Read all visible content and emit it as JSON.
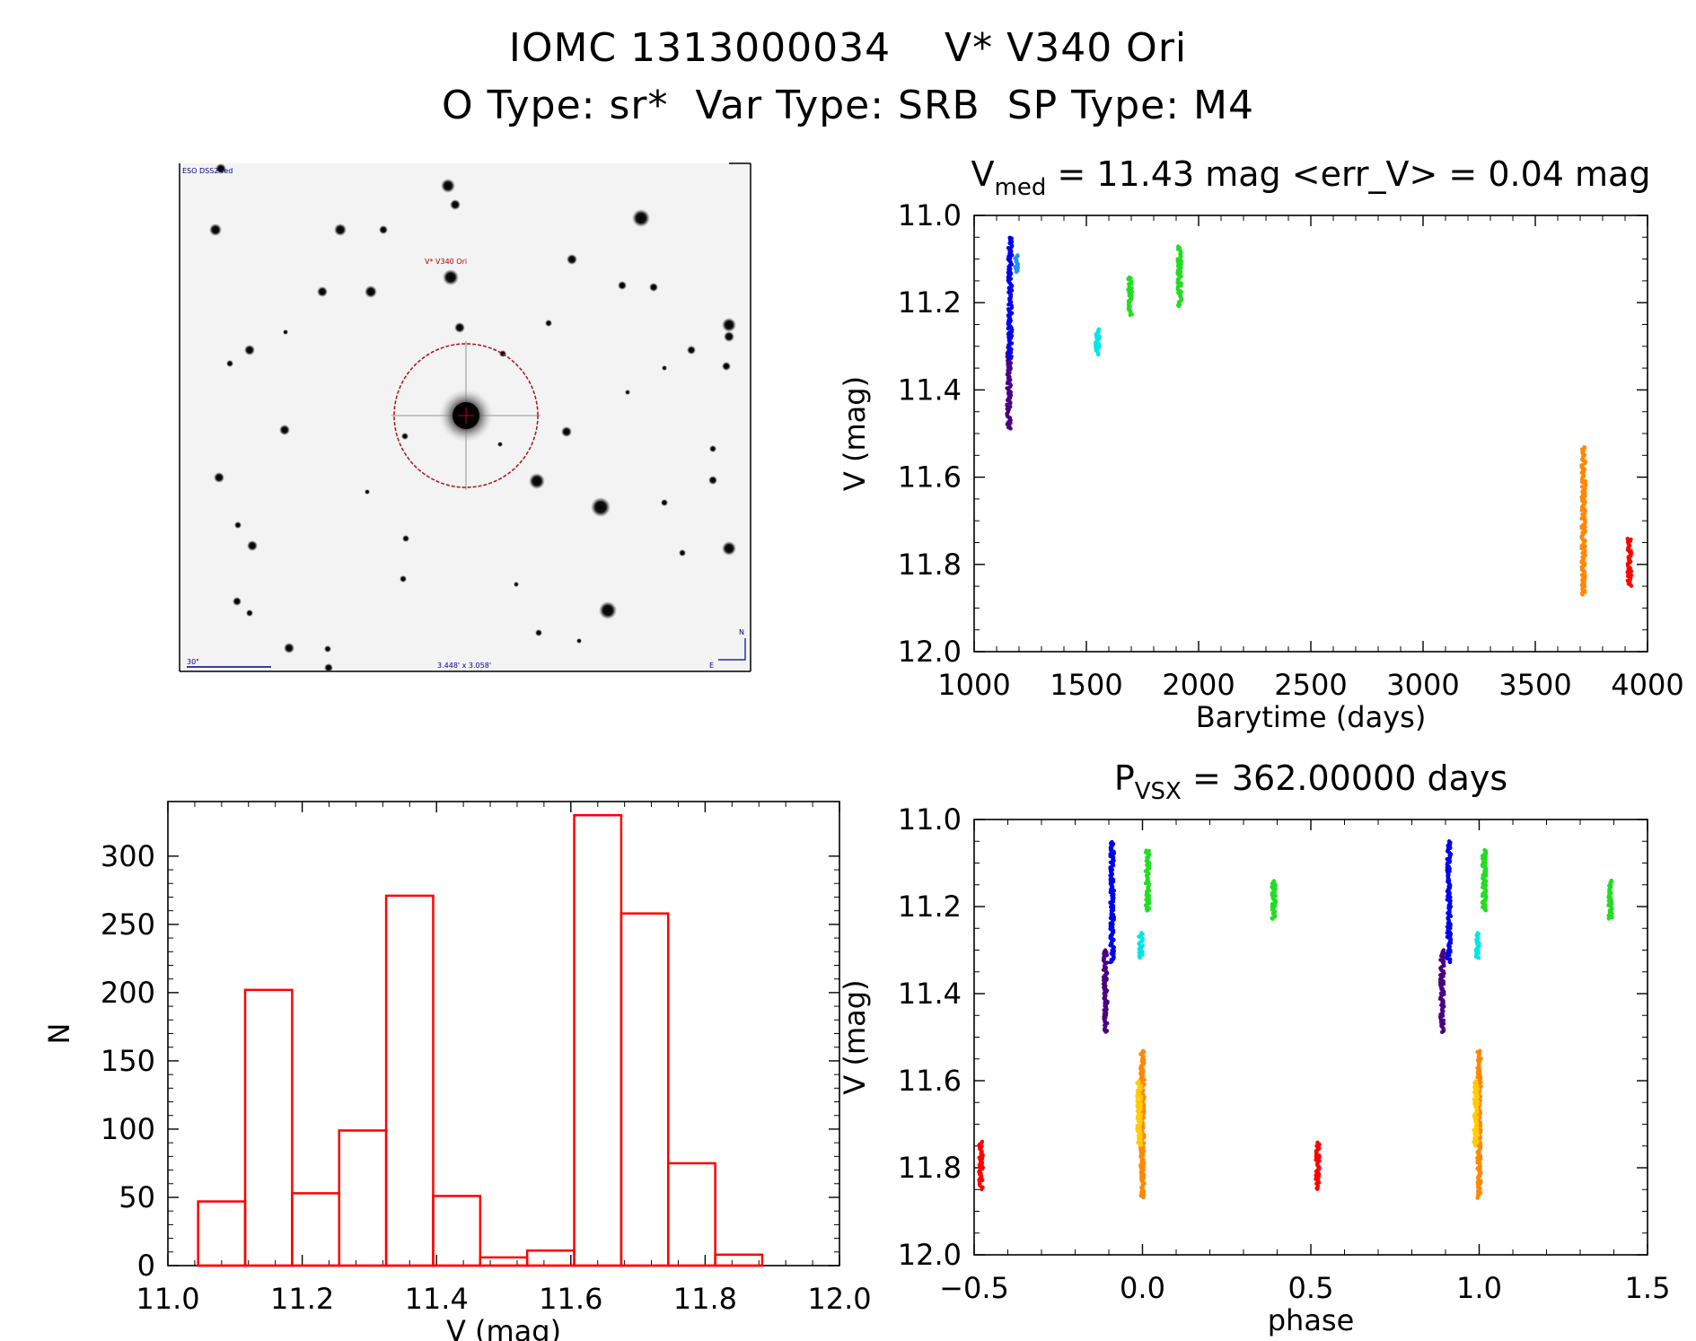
{
  "header": {
    "line1": "IOMC 1313000034    V* V340 Ori",
    "line2": "O Type: sr*  Var Type: SRB  SP Type: M4"
  },
  "finder": {
    "survey_label": "ESO DSS2-red",
    "star_label": "V* V340 Ori",
    "scale_label": "30\"",
    "fov_label": "3.448' x 3.058'",
    "north_label": "N",
    "east_label": "E",
    "marker_color": "#cc0000"
  },
  "chart_data": [
    {
      "id": "light_curve",
      "type": "scatter",
      "title_main": "V",
      "title_sub": "med",
      "title_rest": " = 11.43 mag <err_V> = 0.04 mag",
      "xlabel": "Barytime (days)",
      "ylabel": "V (mag)",
      "xlim": [
        1000,
        4000
      ],
      "ylim": [
        12.0,
        11.0
      ],
      "y_inverted": true,
      "xticks": [
        1000,
        1500,
        2000,
        2500,
        3000,
        3500,
        4000
      ],
      "yticks": [
        11.0,
        11.2,
        11.4,
        11.6,
        11.8,
        12.0
      ],
      "series": [
        {
          "color": "#4b0082",
          "x": 1155,
          "ymin": 11.3,
          "ymax": 11.49
        },
        {
          "color": "#0000ee",
          "x": 1160,
          "ymin": 11.05,
          "ymax": 11.33
        },
        {
          "color": "#1e90ff",
          "x": 1190,
          "ymin": 11.09,
          "ymax": 11.13
        },
        {
          "color": "#00e5e5",
          "x": 1550,
          "ymin": 11.26,
          "ymax": 11.32
        },
        {
          "color": "#22dd22",
          "x": 1695,
          "ymin": 11.14,
          "ymax": 11.23
        },
        {
          "color": "#22dd22",
          "x": 1915,
          "ymin": 11.07,
          "ymax": 11.21
        },
        {
          "color": "#ff8800",
          "x": 3715,
          "ymin": 11.53,
          "ymax": 11.87
        },
        {
          "color": "#ff0000",
          "x": 3920,
          "ymin": 11.74,
          "ymax": 11.85
        }
      ]
    },
    {
      "id": "histogram",
      "type": "bar",
      "xlabel": "V (mag)",
      "ylabel": "N",
      "xlim": [
        11.0,
        12.0
      ],
      "ylim": [
        0,
        340
      ],
      "xticks": [
        11.0,
        11.2,
        11.4,
        11.6,
        11.8,
        12.0
      ],
      "yticks": [
        0,
        50,
        100,
        150,
        200,
        250,
        300
      ],
      "bar_color": "#ff0000",
      "bins": [
        {
          "x0": 11.045,
          "x1": 11.115,
          "n": 47
        },
        {
          "x0": 11.115,
          "x1": 11.185,
          "n": 202
        },
        {
          "x0": 11.185,
          "x1": 11.255,
          "n": 53
        },
        {
          "x0": 11.255,
          "x1": 11.325,
          "n": 99
        },
        {
          "x0": 11.325,
          "x1": 11.395,
          "n": 271
        },
        {
          "x0": 11.395,
          "x1": 11.465,
          "n": 51
        },
        {
          "x0": 11.465,
          "x1": 11.535,
          "n": 6
        },
        {
          "x0": 11.535,
          "x1": 11.605,
          "n": 11
        },
        {
          "x0": 11.605,
          "x1": 11.675,
          "n": 330
        },
        {
          "x0": 11.675,
          "x1": 11.745,
          "n": 258
        },
        {
          "x0": 11.745,
          "x1": 11.815,
          "n": 75
        },
        {
          "x0": 11.815,
          "x1": 11.885,
          "n": 8
        }
      ]
    },
    {
      "id": "phase_curve",
      "type": "scatter",
      "title_main": "P",
      "title_sub": "VSX",
      "title_rest": " = 362.00000 days",
      "xlabel": "phase",
      "ylabel": "V (mag)",
      "xlim": [
        -0.5,
        1.5
      ],
      "ylim": [
        12.0,
        11.0
      ],
      "y_inverted": true,
      "xticks": [
        -0.5,
        0.0,
        0.5,
        1.0,
        1.5
      ],
      "yticks": [
        11.0,
        11.2,
        11.4,
        11.6,
        11.8,
        12.0
      ],
      "series": [
        {
          "color": "#ff0000",
          "x": -0.48,
          "ymin": 11.74,
          "ymax": 11.85
        },
        {
          "color": "#4b0082",
          "x": -0.11,
          "ymin": 11.3,
          "ymax": 11.49
        },
        {
          "color": "#0000ee",
          "x": -0.09,
          "ymin": 11.05,
          "ymax": 11.33
        },
        {
          "color": "#00e5e5",
          "x": -0.005,
          "ymin": 11.26,
          "ymax": 11.32
        },
        {
          "color": "#ff8800",
          "x": 0.0,
          "ymin": 11.53,
          "ymax": 11.87
        },
        {
          "color": "#ffcc00",
          "x": -0.01,
          "ymin": 11.6,
          "ymax": 11.75
        },
        {
          "color": "#22dd22",
          "x": 0.015,
          "ymin": 11.07,
          "ymax": 11.21
        },
        {
          "color": "#22dd22",
          "x": 0.39,
          "ymin": 11.14,
          "ymax": 11.23
        },
        {
          "color": "#ff0000",
          "x": 0.52,
          "ymin": 11.74,
          "ymax": 11.85
        },
        {
          "color": "#4b0082",
          "x": 0.89,
          "ymin": 11.3,
          "ymax": 11.49
        },
        {
          "color": "#0000ee",
          "x": 0.91,
          "ymin": 11.05,
          "ymax": 11.33
        },
        {
          "color": "#00e5e5",
          "x": 0.995,
          "ymin": 11.26,
          "ymax": 11.32
        },
        {
          "color": "#ff8800",
          "x": 1.0,
          "ymin": 11.53,
          "ymax": 11.87
        },
        {
          "color": "#ffcc00",
          "x": 0.99,
          "ymin": 11.6,
          "ymax": 11.75
        },
        {
          "color": "#22dd22",
          "x": 1.015,
          "ymin": 11.07,
          "ymax": 11.21
        },
        {
          "color": "#22dd22",
          "x": 1.39,
          "ymin": 11.14,
          "ymax": 11.23
        }
      ]
    }
  ]
}
